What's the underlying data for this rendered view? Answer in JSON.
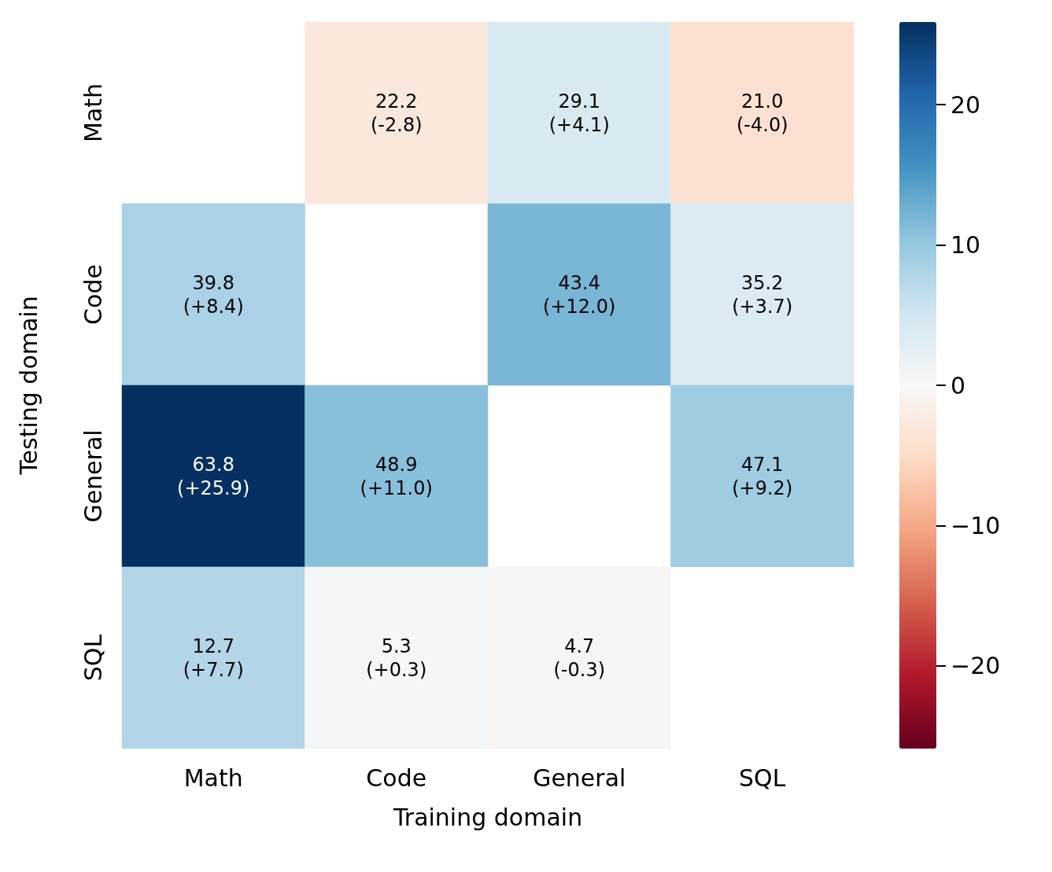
{
  "chart_data": {
    "type": "heatmap",
    "xlabel": "Training domain",
    "ylabel": "Testing domain",
    "categories": [
      "Math",
      "Code",
      "General",
      "SQL"
    ],
    "y_categories": [
      "Math",
      "Code",
      "General",
      "SQL"
    ],
    "cells": [
      [
        null,
        -2.8,
        4.1,
        -4.0
      ],
      [
        8.4,
        null,
        12.0,
        3.7
      ],
      [
        25.9,
        11.0,
        null,
        9.2
      ],
      [
        7.7,
        0.3,
        -0.3,
        null
      ]
    ],
    "cell_labels": [
      [
        null,
        "22.2\n(-2.8)",
        "29.1\n(+4.1)",
        "21.0\n(-4.0)"
      ],
      [
        "39.8\n(+8.4)",
        null,
        "43.4\n(+12.0)",
        "35.2\n(+3.7)"
      ],
      [
        "63.8\n(+25.9)",
        "48.9\n(+11.0)",
        null,
        "47.1\n(+9.2)"
      ],
      [
        "12.7\n(+7.7)",
        "5.3\n(+0.3)",
        "4.7\n(-0.3)",
        null
      ]
    ],
    "clim": [
      -25.9,
      25.9
    ],
    "cticks": [
      {
        "value": -20,
        "label": "−20"
      },
      {
        "value": -10,
        "label": "−10"
      },
      {
        "value": 0,
        "label": "0"
      },
      {
        "value": 10,
        "label": "10"
      },
      {
        "value": 20,
        "label": "20"
      }
    ]
  }
}
